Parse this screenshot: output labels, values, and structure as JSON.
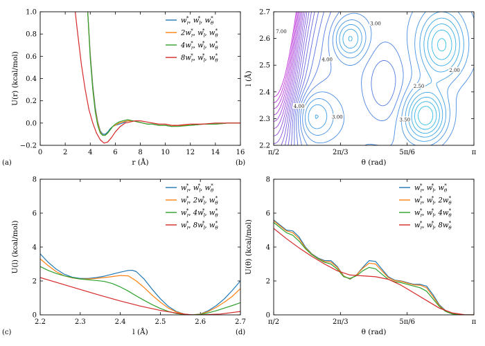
{
  "colors": {
    "blue": "#1f77b4",
    "orange": "#ff7f0e",
    "green": "#2ca02c",
    "red": "#d62728",
    "contour_low": "#1fd8e8",
    "contour_mid": "#5a6ee0",
    "contour_high": "#c02ad8"
  },
  "chart_data": [
    {
      "type": "line",
      "panel": "(a)",
      "xlabel": "r (Å)",
      "ylabel": "U(r) (kcal/mol)",
      "xlim": [
        0,
        16
      ],
      "ylim": [
        -0.2,
        1.0
      ],
      "xticks": [
        0,
        2,
        4,
        6,
        8,
        10,
        12,
        14,
        16
      ],
      "xtick_labels": [
        "0",
        "2",
        "4",
        "6",
        "8",
        "10",
        "12",
        "14",
        "16"
      ],
      "yticks": [
        -0.2,
        0.0,
        0.2,
        0.4,
        0.6,
        0.8,
        1.0
      ],
      "ytick_labels": [
        "−0.2",
        "0.0",
        "0.2",
        "0.4",
        "0.6",
        "0.8",
        "1.0"
      ],
      "legend_position": "top-right",
      "series": [
        {
          "name": "w*r, w*l, w*θ",
          "legend": [
            "w",
            "r",
            "*",
            ", ",
            "w",
            "l",
            "*",
            ", ",
            "w",
            "θ",
            "*"
          ],
          "legend_prefix": "",
          "legend_factor": "",
          "color": "blue",
          "x": [
            3.8,
            4.0,
            4.2,
            4.4,
            4.6,
            4.8,
            5.0,
            5.2,
            5.4,
            5.6,
            5.8,
            6.0,
            6.3,
            6.6,
            7.0,
            7.4,
            7.8,
            8.2,
            8.6,
            9.0,
            9.5,
            10.0,
            10.5,
            11.0,
            12.0,
            13.0,
            14.0,
            15.0,
            16.0
          ],
          "y": [
            1.0,
            0.62,
            0.34,
            0.14,
            0.01,
            -0.07,
            -0.1,
            -0.1,
            -0.08,
            -0.05,
            -0.03,
            -0.02,
            -0.01,
            0.0,
            0.02,
            0.02,
            0.01,
            0.0,
            -0.01,
            -0.01,
            -0.02,
            -0.02,
            -0.03,
            -0.02,
            -0.02,
            -0.01,
            -0.01,
            0.0,
            0.0
          ]
        },
        {
          "name": "2w*r, w*l, w*θ",
          "legend_prefix": "2",
          "color": "orange",
          "x": [
            3.8,
            4.0,
            4.2,
            4.4,
            4.6,
            4.8,
            5.0,
            5.2,
            5.4,
            5.6,
            5.8,
            6.0,
            6.3,
            6.6,
            7.0,
            7.4,
            7.8,
            8.2,
            8.6,
            9.0,
            9.5,
            10.0,
            10.5,
            11.0,
            12.0,
            13.0,
            14.0,
            15.0,
            16.0
          ],
          "y": [
            1.0,
            0.6,
            0.32,
            0.12,
            0.0,
            -0.08,
            -0.11,
            -0.11,
            -0.09,
            -0.06,
            -0.03,
            -0.02,
            0.0,
            0.01,
            0.02,
            0.02,
            0.01,
            0.0,
            -0.01,
            -0.01,
            -0.02,
            -0.02,
            -0.03,
            -0.02,
            -0.02,
            -0.01,
            -0.01,
            0.0,
            0.0
          ]
        },
        {
          "name": "4w*r, w*l, w*θ",
          "legend_prefix": "4",
          "color": "green",
          "x": [
            3.8,
            4.0,
            4.2,
            4.4,
            4.6,
            4.8,
            5.0,
            5.2,
            5.4,
            5.6,
            5.8,
            6.0,
            6.3,
            6.6,
            7.0,
            7.4,
            7.8,
            8.2,
            8.6,
            9.0,
            9.5,
            10.0,
            10.5,
            11.0,
            12.0,
            13.0,
            14.0,
            15.0,
            16.0
          ],
          "y": [
            1.0,
            0.58,
            0.3,
            0.1,
            -0.02,
            -0.09,
            -0.11,
            -0.11,
            -0.09,
            -0.06,
            -0.03,
            -0.01,
            0.01,
            0.02,
            0.03,
            0.02,
            0.01,
            0.0,
            -0.01,
            -0.01,
            -0.02,
            -0.02,
            -0.03,
            -0.03,
            -0.02,
            -0.01,
            -0.01,
            0.0,
            0.0
          ]
        },
        {
          "name": "8w*r, w*l, w*θ",
          "legend_prefix": "8",
          "color": "red",
          "x": [
            2.8,
            3.0,
            3.3,
            3.6,
            3.9,
            4.2,
            4.5,
            4.8,
            5.1,
            5.4,
            5.7,
            6.0,
            6.4,
            6.8,
            7.2,
            7.6,
            8.0,
            8.5,
            9.0,
            9.5,
            10.0,
            10.5,
            11.0,
            12.0,
            13.0,
            14.0,
            15.0,
            16.0
          ],
          "y": [
            1.0,
            0.8,
            0.52,
            0.3,
            0.12,
            0.0,
            -0.09,
            -0.15,
            -0.18,
            -0.17,
            -0.13,
            -0.08,
            -0.03,
            0.0,
            0.01,
            0.02,
            0.02,
            0.01,
            0.0,
            -0.01,
            -0.01,
            -0.02,
            -0.02,
            -0.01,
            -0.01,
            0.0,
            0.0,
            0.0
          ]
        }
      ]
    },
    {
      "type": "contour",
      "panel": "(b)",
      "xlabel": "θ (rad)",
      "ylabel": "l (Å)",
      "xlim": [
        1.5708,
        3.1416
      ],
      "ylim": [
        2.2,
        2.7
      ],
      "xticks": [
        1.5708,
        2.0944,
        2.618,
        3.1416
      ],
      "xtick_labels": [
        "π/2",
        "2π/3",
        "5π/6",
        "π"
      ],
      "yticks": [
        2.2,
        2.3,
        2.4,
        2.5,
        2.6,
        2.7
      ],
      "ytick_labels": [
        "2.2",
        "2.3",
        "2.4",
        "2.5",
        "2.6",
        "2.7"
      ],
      "levels": [
        1.25,
        1.5,
        1.75,
        2.0,
        2.25,
        2.5,
        2.75,
        3.0,
        3.25,
        3.5,
        3.75,
        4.0,
        4.25,
        4.5,
        4.75,
        5.0,
        5.25,
        5.5,
        5.75,
        6.0,
        6.25,
        6.5,
        6.75,
        7.0,
        7.25,
        7.5
      ],
      "labels": [
        {
          "text": "3.00",
          "theta": 2.37,
          "l": 2.655
        },
        {
          "text": "4.00",
          "theta": 1.99,
          "l": 2.52
        },
        {
          "text": "2.00",
          "theta": 2.99,
          "l": 2.48
        },
        {
          "text": "2.50",
          "theta": 2.71,
          "l": 2.42
        },
        {
          "text": "4.00",
          "theta": 1.77,
          "l": 2.345
        },
        {
          "text": "3.00",
          "theta": 2.07,
          "l": 2.305
        },
        {
          "text": "3.50",
          "theta": 2.6,
          "l": 2.295
        },
        {
          "text": "7.00",
          "theta": 1.63,
          "l": 2.625
        }
      ]
    },
    {
      "type": "line",
      "panel": "(c)",
      "xlabel": "l (Å)",
      "ylabel": "U(l) (kcal/mol)",
      "xlim": [
        2.2,
        2.7
      ],
      "ylim": [
        0,
        8
      ],
      "xticks": [
        2.2,
        2.3,
        2.4,
        2.5,
        2.6,
        2.7
      ],
      "xtick_labels": [
        "2.2",
        "2.3",
        "2.4",
        "2.5",
        "2.6",
        "2.7"
      ],
      "yticks": [
        0,
        2,
        4,
        6,
        8
      ],
      "ytick_labels": [
        "0",
        "2",
        "4",
        "6",
        "8"
      ],
      "legend_position": "top-right",
      "series": [
        {
          "name": "w*r, w*l, w*θ",
          "legend_prefix": "",
          "color": "blue",
          "x": [
            2.2,
            2.22,
            2.24,
            2.26,
            2.28,
            2.3,
            2.32,
            2.34,
            2.36,
            2.38,
            2.4,
            2.42,
            2.43,
            2.44,
            2.46,
            2.48,
            2.5,
            2.52,
            2.54,
            2.56,
            2.58,
            2.6,
            2.62,
            2.64,
            2.66,
            2.68,
            2.7
          ],
          "y": [
            3.6,
            3.1,
            2.7,
            2.4,
            2.22,
            2.15,
            2.15,
            2.2,
            2.28,
            2.4,
            2.52,
            2.62,
            2.63,
            2.55,
            2.1,
            1.5,
            0.95,
            0.5,
            0.2,
            0.04,
            0.0,
            0.05,
            0.25,
            0.55,
            0.95,
            1.45,
            2.0
          ]
        },
        {
          "name": "w*r, 2w*l, w*θ",
          "legend_prefix": "",
          "color": "orange",
          "x": [
            2.2,
            2.22,
            2.24,
            2.26,
            2.28,
            2.3,
            2.32,
            2.34,
            2.36,
            2.38,
            2.4,
            2.42,
            2.44,
            2.46,
            2.48,
            2.5,
            2.52,
            2.54,
            2.56,
            2.58,
            2.6,
            2.62,
            2.64,
            2.66,
            2.68,
            2.7
          ],
          "y": [
            3.3,
            2.9,
            2.55,
            2.3,
            2.18,
            2.12,
            2.12,
            2.15,
            2.2,
            2.26,
            2.32,
            2.3,
            2.0,
            1.6,
            1.15,
            0.75,
            0.4,
            0.17,
            0.04,
            0.0,
            0.04,
            0.2,
            0.45,
            0.75,
            1.1,
            1.55
          ]
        },
        {
          "name": "w*r, 4w*l, w*θ",
          "legend_prefix": "",
          "color": "green",
          "x": [
            2.2,
            2.22,
            2.24,
            2.26,
            2.28,
            2.3,
            2.32,
            2.34,
            2.36,
            2.38,
            2.4,
            2.42,
            2.44,
            2.46,
            2.48,
            2.5,
            2.52,
            2.54,
            2.56,
            2.58,
            2.6,
            2.62,
            2.64,
            2.66,
            2.68,
            2.7
          ],
          "y": [
            2.85,
            2.62,
            2.44,
            2.3,
            2.2,
            2.12,
            2.07,
            2.03,
            1.97,
            1.85,
            1.65,
            1.4,
            1.12,
            0.85,
            0.6,
            0.38,
            0.2,
            0.08,
            0.02,
            0.0,
            0.03,
            0.12,
            0.25,
            0.4,
            0.55,
            0.72
          ]
        },
        {
          "name": "w*r, 8w*l, w*θ",
          "legend_prefix": "",
          "color": "red",
          "x": [
            2.2,
            2.25,
            2.3,
            2.35,
            2.4,
            2.45,
            2.5,
            2.55,
            2.58,
            2.6,
            2.65,
            2.7
          ],
          "y": [
            2.2,
            1.85,
            1.5,
            1.15,
            0.82,
            0.52,
            0.26,
            0.07,
            0.0,
            0.0,
            0.05,
            0.2
          ]
        }
      ]
    },
    {
      "type": "line",
      "panel": "(d)",
      "xlabel": "θ (rad)",
      "ylabel": "U(θ) (kcal/mol)",
      "xlim": [
        1.5708,
        3.1416
      ],
      "ylim": [
        0,
        8
      ],
      "xticks": [
        1.5708,
        2.0944,
        2.618,
        3.1416
      ],
      "xtick_labels": [
        "π/2",
        "2π/3",
        "5π/6",
        "π"
      ],
      "yticks": [
        0,
        2,
        4,
        6,
        8
      ],
      "ytick_labels": [
        "0",
        "2",
        "4",
        "6",
        "8"
      ],
      "legend_position": "top-right",
      "series": [
        {
          "name": "w*r, w*l, w*θ",
          "legend_prefix": "",
          "color": "blue",
          "x": [
            1.571,
            1.62,
            1.67,
            1.72,
            1.77,
            1.82,
            1.87,
            1.92,
            1.97,
            2.02,
            2.07,
            2.12,
            2.17,
            2.22,
            2.27,
            2.32,
            2.37,
            2.42,
            2.47,
            2.52,
            2.57,
            2.62,
            2.67,
            2.72,
            2.77,
            2.82,
            2.87,
            2.92,
            2.97,
            3.02,
            3.07,
            3.1416
          ],
          "y": [
            5.6,
            5.3,
            5.0,
            4.95,
            4.6,
            4.0,
            3.6,
            3.35,
            3.2,
            3.2,
            2.85,
            2.3,
            2.1,
            2.35,
            2.8,
            3.2,
            3.15,
            2.7,
            2.25,
            2.05,
            2.0,
            1.9,
            1.8,
            1.8,
            1.7,
            1.2,
            0.6,
            0.25,
            0.08,
            0.02,
            0.0,
            0.0
          ]
        },
        {
          "name": "w*r, w*l, 2w*θ",
          "legend_prefix": "",
          "color": "orange",
          "x": [
            1.571,
            1.62,
            1.67,
            1.72,
            1.77,
            1.82,
            1.87,
            1.92,
            1.97,
            2.02,
            2.07,
            2.12,
            2.17,
            2.22,
            2.27,
            2.32,
            2.37,
            2.42,
            2.47,
            2.52,
            2.57,
            2.62,
            2.67,
            2.72,
            2.77,
            2.82,
            2.87,
            2.92,
            2.97,
            3.02,
            3.07,
            3.1416
          ],
          "y": [
            5.55,
            5.25,
            4.95,
            4.85,
            4.5,
            3.95,
            3.58,
            3.32,
            3.15,
            3.12,
            2.8,
            2.28,
            2.12,
            2.35,
            2.75,
            3.05,
            3.0,
            2.6,
            2.2,
            2.02,
            1.98,
            1.87,
            1.77,
            1.75,
            1.6,
            1.1,
            0.55,
            0.22,
            0.07,
            0.02,
            0.0,
            0.0
          ]
        },
        {
          "name": "w*r, w*l, 4w*θ",
          "legend_prefix": "",
          "color": "green",
          "x": [
            1.571,
            1.62,
            1.67,
            1.72,
            1.77,
            1.82,
            1.87,
            1.92,
            1.97,
            2.02,
            2.07,
            2.12,
            2.17,
            2.22,
            2.27,
            2.32,
            2.37,
            2.42,
            2.47,
            2.52,
            2.57,
            2.62,
            2.67,
            2.72,
            2.77,
            2.82,
            2.87,
            2.92,
            2.97,
            3.02,
            3.07,
            3.1416
          ],
          "y": [
            5.45,
            5.15,
            4.85,
            4.7,
            4.35,
            3.9,
            3.55,
            3.3,
            3.1,
            3.0,
            2.7,
            2.25,
            2.15,
            2.3,
            2.6,
            2.8,
            2.72,
            2.4,
            2.1,
            1.95,
            1.9,
            1.8,
            1.7,
            1.6,
            1.4,
            0.95,
            0.5,
            0.2,
            0.06,
            0.01,
            0.0,
            0.0
          ]
        },
        {
          "name": "w*r, w*l, 8w*θ",
          "legend_prefix": "",
          "color": "red",
          "x": [
            1.571,
            1.67,
            1.77,
            1.87,
            1.97,
            2.07,
            2.17,
            2.27,
            2.37,
            2.47,
            2.57,
            2.67,
            2.77,
            2.87,
            2.97,
            3.07,
            3.1416
          ],
          "y": [
            5.1,
            4.5,
            3.95,
            3.45,
            3.0,
            2.6,
            2.35,
            2.3,
            2.25,
            2.1,
            1.75,
            1.3,
            0.85,
            0.4,
            0.12,
            0.01,
            0.0
          ]
        }
      ]
    }
  ],
  "legends": {
    "a": [
      [
        "",
        "r",
        ""
      ],
      [
        "2",
        "r",
        ""
      ],
      [
        "4",
        "r",
        ""
      ],
      [
        "8",
        "r",
        ""
      ]
    ],
    "c": [
      [
        "",
        "l",
        ""
      ],
      [
        "2",
        "l",
        ""
      ],
      [
        "4",
        "l",
        ""
      ],
      [
        "8",
        "l",
        ""
      ]
    ],
    "d": [
      [
        "",
        "θ",
        ""
      ],
      [
        "2",
        "θ",
        ""
      ],
      [
        "4",
        "θ",
        ""
      ],
      [
        "8",
        "θ",
        ""
      ]
    ]
  }
}
